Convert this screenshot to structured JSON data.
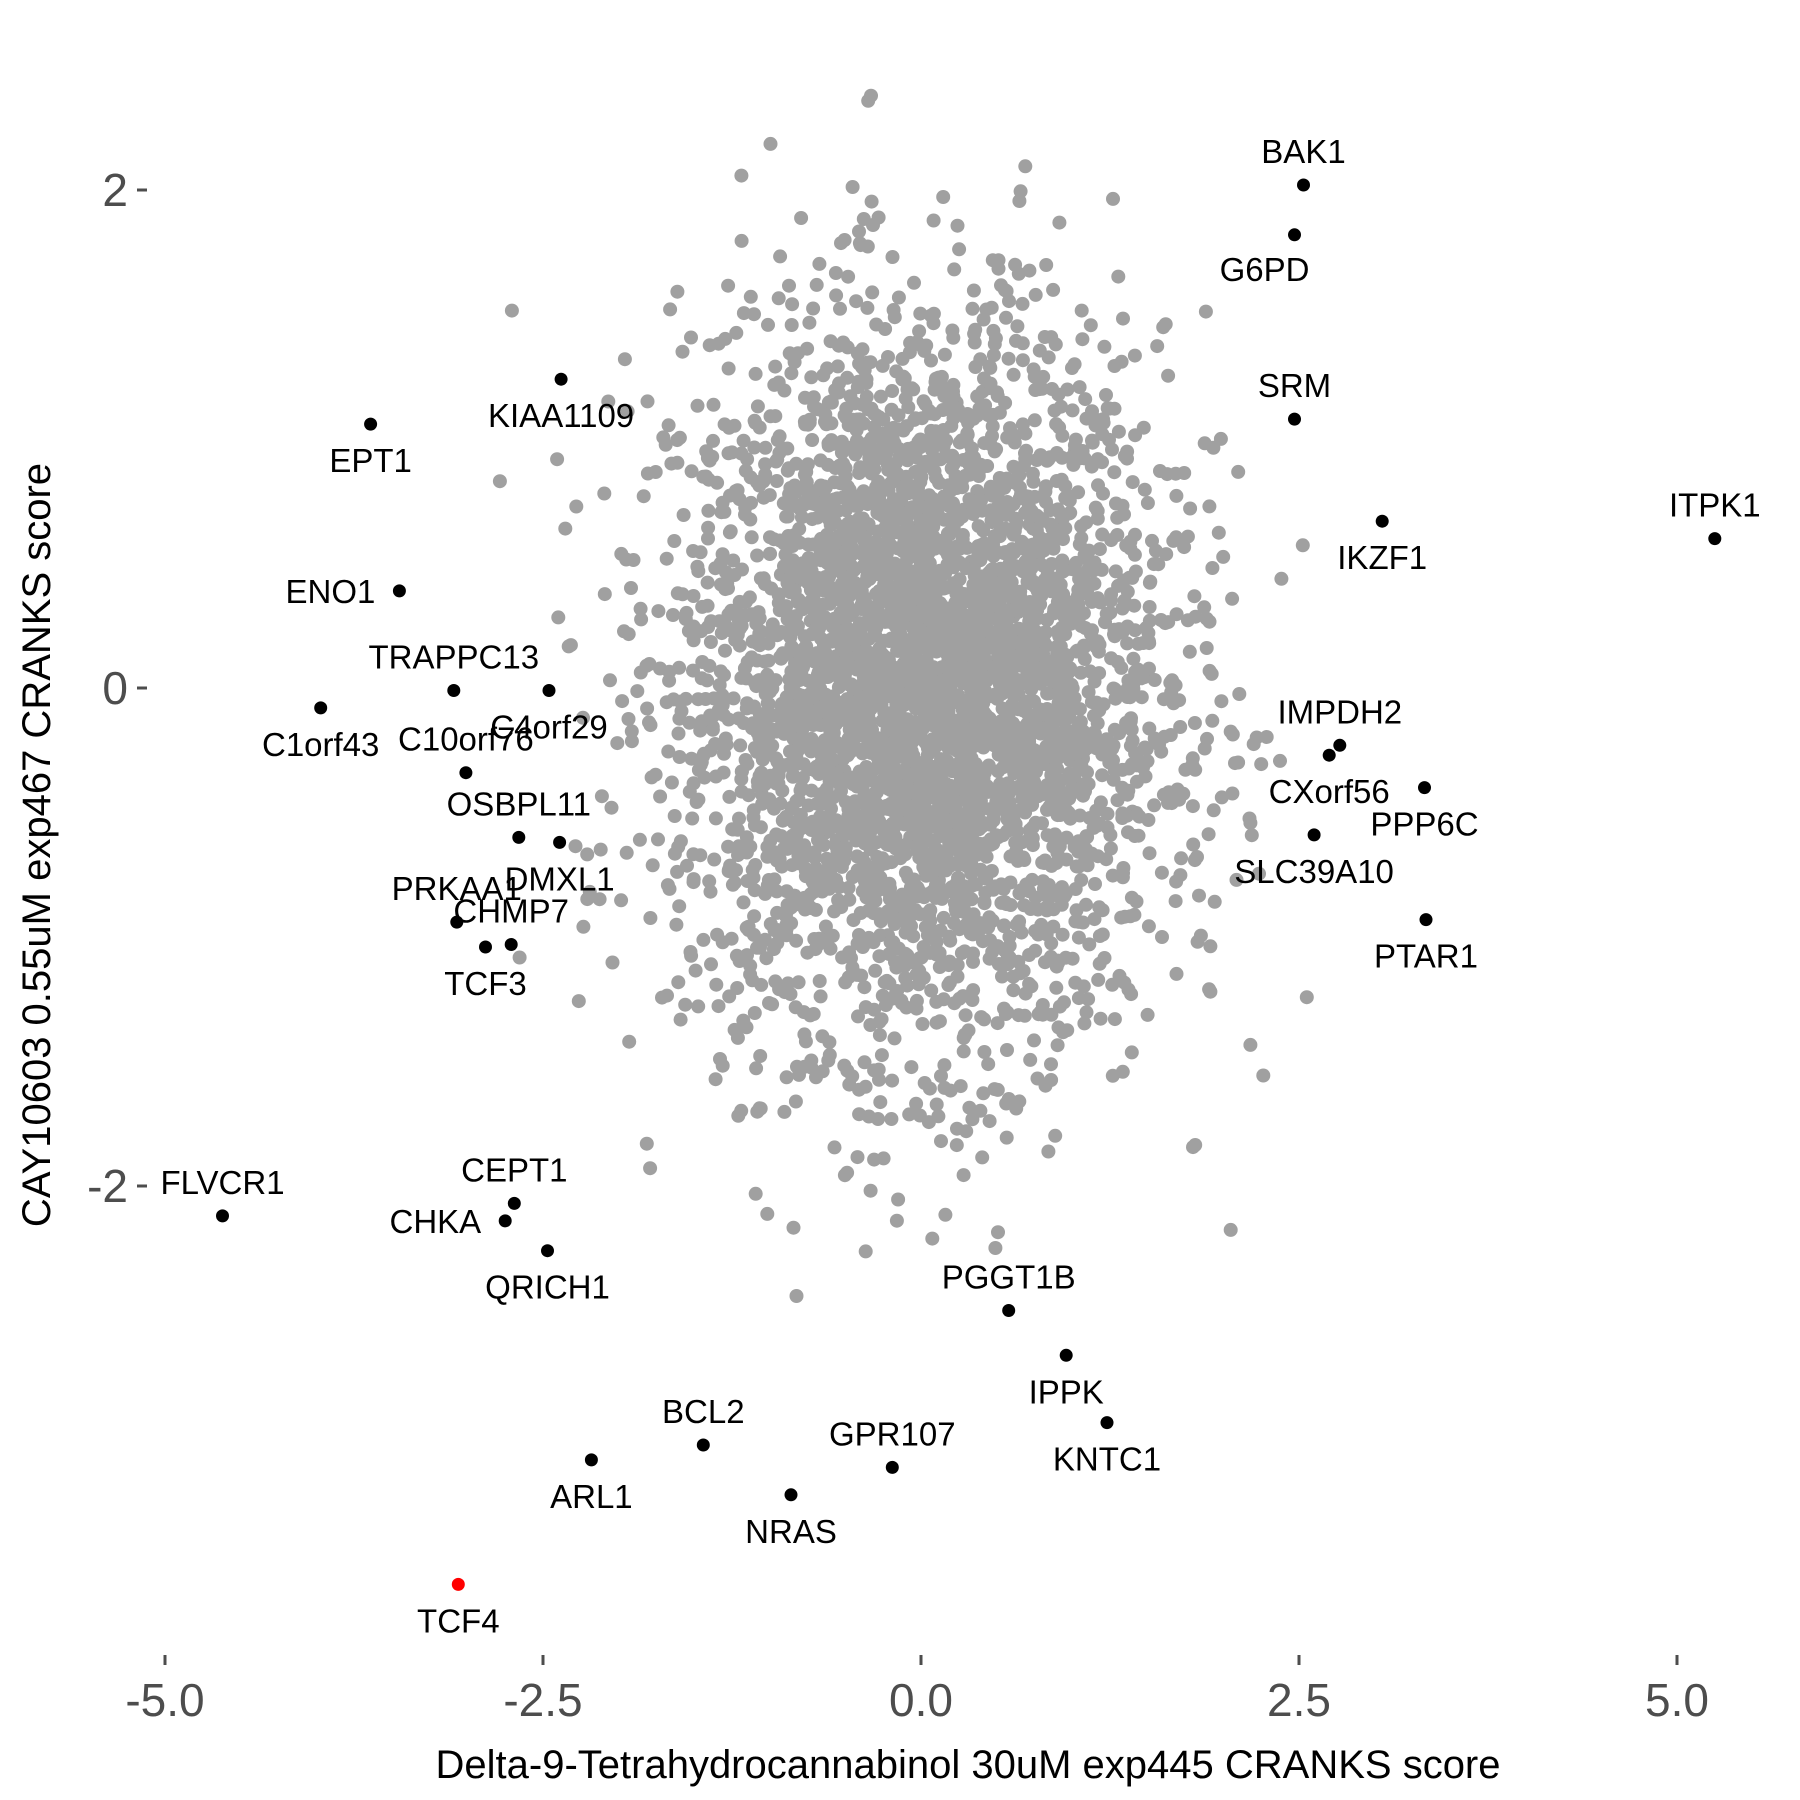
{
  "chart_data": {
    "type": "scatter",
    "title": "",
    "xlabel": "Delta-9-Tetrahydrocannabinol 30uM exp445 CRANKS score",
    "ylabel": "CAY10603 0.55uM exp467 CRANKS score",
    "xlim": [
      -5.0,
      5.3
    ],
    "ylim": [
      -3.8,
      2.4
    ],
    "x_ticks": [
      {
        "value": -5.0,
        "label": "-5.0"
      },
      {
        "value": -2.5,
        "label": "-2.5"
      },
      {
        "value": 0.0,
        "label": "0.0"
      },
      {
        "value": 2.5,
        "label": "2.5"
      },
      {
        "value": 5.0,
        "label": "5.0"
      }
    ],
    "y_ticks": [
      {
        "value": 2,
        "label": "2"
      },
      {
        "value": 0,
        "label": "0"
      },
      {
        "value": -2,
        "label": "-2"
      }
    ],
    "grid": false,
    "colors": {
      "background_genes": "#a0a0a0",
      "highlighted_genes": "#000000",
      "target_gene": "#ff0000"
    },
    "background_cloud": {
      "color": "#a0a0a0",
      "x_center": 0.0,
      "y_center": 0.0,
      "x_sd": 0.8,
      "y_sd": 0.72,
      "approx_points": 9000
    },
    "labeled_points": [
      {
        "label": "BAK1",
        "x": 2.53,
        "y": 2.02,
        "color": "#000000",
        "pos": "above"
      },
      {
        "label": "G6PD",
        "x": 2.47,
        "y": 1.82,
        "color": "#000000",
        "pos": "below-left"
      },
      {
        "label": "SRM",
        "x": 2.47,
        "y": 1.08,
        "color": "#000000",
        "pos": "above"
      },
      {
        "label": "ITPK1",
        "x": 5.25,
        "y": 0.6,
        "color": "#000000",
        "pos": "above"
      },
      {
        "label": "IKZF1",
        "x": 3.05,
        "y": 0.67,
        "color": "#000000",
        "pos": "below"
      },
      {
        "label": "IMPDH2",
        "x": 2.77,
        "y": -0.23,
        "color": "#000000",
        "pos": "above"
      },
      {
        "label": "CXorf56",
        "x": 2.7,
        "y": -0.27,
        "color": "#000000",
        "pos": "below"
      },
      {
        "label": "PPP6C",
        "x": 3.33,
        "y": -0.4,
        "color": "#000000",
        "pos": "below"
      },
      {
        "label": "SLC39A10",
        "x": 2.6,
        "y": -0.59,
        "color": "#000000",
        "pos": "below"
      },
      {
        "label": "PTAR1",
        "x": 3.34,
        "y": -0.93,
        "color": "#000000",
        "pos": "below"
      },
      {
        "label": "KIAA1109",
        "x": -2.38,
        "y": 1.24,
        "color": "#000000",
        "pos": "below"
      },
      {
        "label": "EPT1",
        "x": -3.64,
        "y": 1.06,
        "color": "#000000",
        "pos": "below"
      },
      {
        "label": "ENO1",
        "x": -3.45,
        "y": 0.39,
        "color": "#000000",
        "pos": "left"
      },
      {
        "label": "TRAPPC13",
        "x": -3.09,
        "y": -0.01,
        "color": "#000000",
        "pos": "above"
      },
      {
        "label": "C4orf29",
        "x": -2.46,
        "y": -0.01,
        "color": "#000000",
        "pos": "below"
      },
      {
        "label": "C1orf43",
        "x": -3.97,
        "y": -0.08,
        "color": "#000000",
        "pos": "below"
      },
      {
        "label": "C10orf76",
        "x": -3.01,
        "y": -0.34,
        "color": "#000000",
        "pos": "above"
      },
      {
        "label": "OSBPL11",
        "x": -2.66,
        "y": -0.6,
        "color": "#000000",
        "pos": "above"
      },
      {
        "label": "DMXL1",
        "x": -2.39,
        "y": -0.62,
        "color": "#000000",
        "pos": "below"
      },
      {
        "label": "PRKAA1",
        "x": -3.07,
        "y": -0.94,
        "color": "#000000",
        "pos": "above"
      },
      {
        "label": "CHMP7",
        "x": -2.71,
        "y": -1.03,
        "color": "#000000",
        "pos": "above"
      },
      {
        "label": "TCF3",
        "x": -2.88,
        "y": -1.04,
        "color": "#000000",
        "pos": "below"
      },
      {
        "label": "FLVCR1",
        "x": -4.62,
        "y": -2.12,
        "color": "#000000",
        "pos": "above"
      },
      {
        "label": "CEPT1",
        "x": -2.69,
        "y": -2.07,
        "color": "#000000",
        "pos": "above"
      },
      {
        "label": "CHKA",
        "x": -2.75,
        "y": -2.14,
        "color": "#000000",
        "pos": "left"
      },
      {
        "label": "QRICH1",
        "x": -2.47,
        "y": -2.26,
        "color": "#000000",
        "pos": "below"
      },
      {
        "label": "PGGT1B",
        "x": 0.58,
        "y": -2.5,
        "color": "#000000",
        "pos": "above"
      },
      {
        "label": "IPPK",
        "x": 0.96,
        "y": -2.68,
        "color": "#000000",
        "pos": "below"
      },
      {
        "label": "KNTC1",
        "x": 1.23,
        "y": -2.95,
        "color": "#000000",
        "pos": "below"
      },
      {
        "label": "BCL2",
        "x": -1.44,
        "y": -3.04,
        "color": "#000000",
        "pos": "above"
      },
      {
        "label": "GPR107",
        "x": -0.19,
        "y": -3.13,
        "color": "#000000",
        "pos": "above"
      },
      {
        "label": "ARL1",
        "x": -2.18,
        "y": -3.1,
        "color": "#000000",
        "pos": "below"
      },
      {
        "label": "NRAS",
        "x": -0.86,
        "y": -3.24,
        "color": "#000000",
        "pos": "below"
      },
      {
        "label": "TCF4",
        "x": -3.06,
        "y": -3.6,
        "color": "#ff0000",
        "pos": "below"
      }
    ]
  }
}
